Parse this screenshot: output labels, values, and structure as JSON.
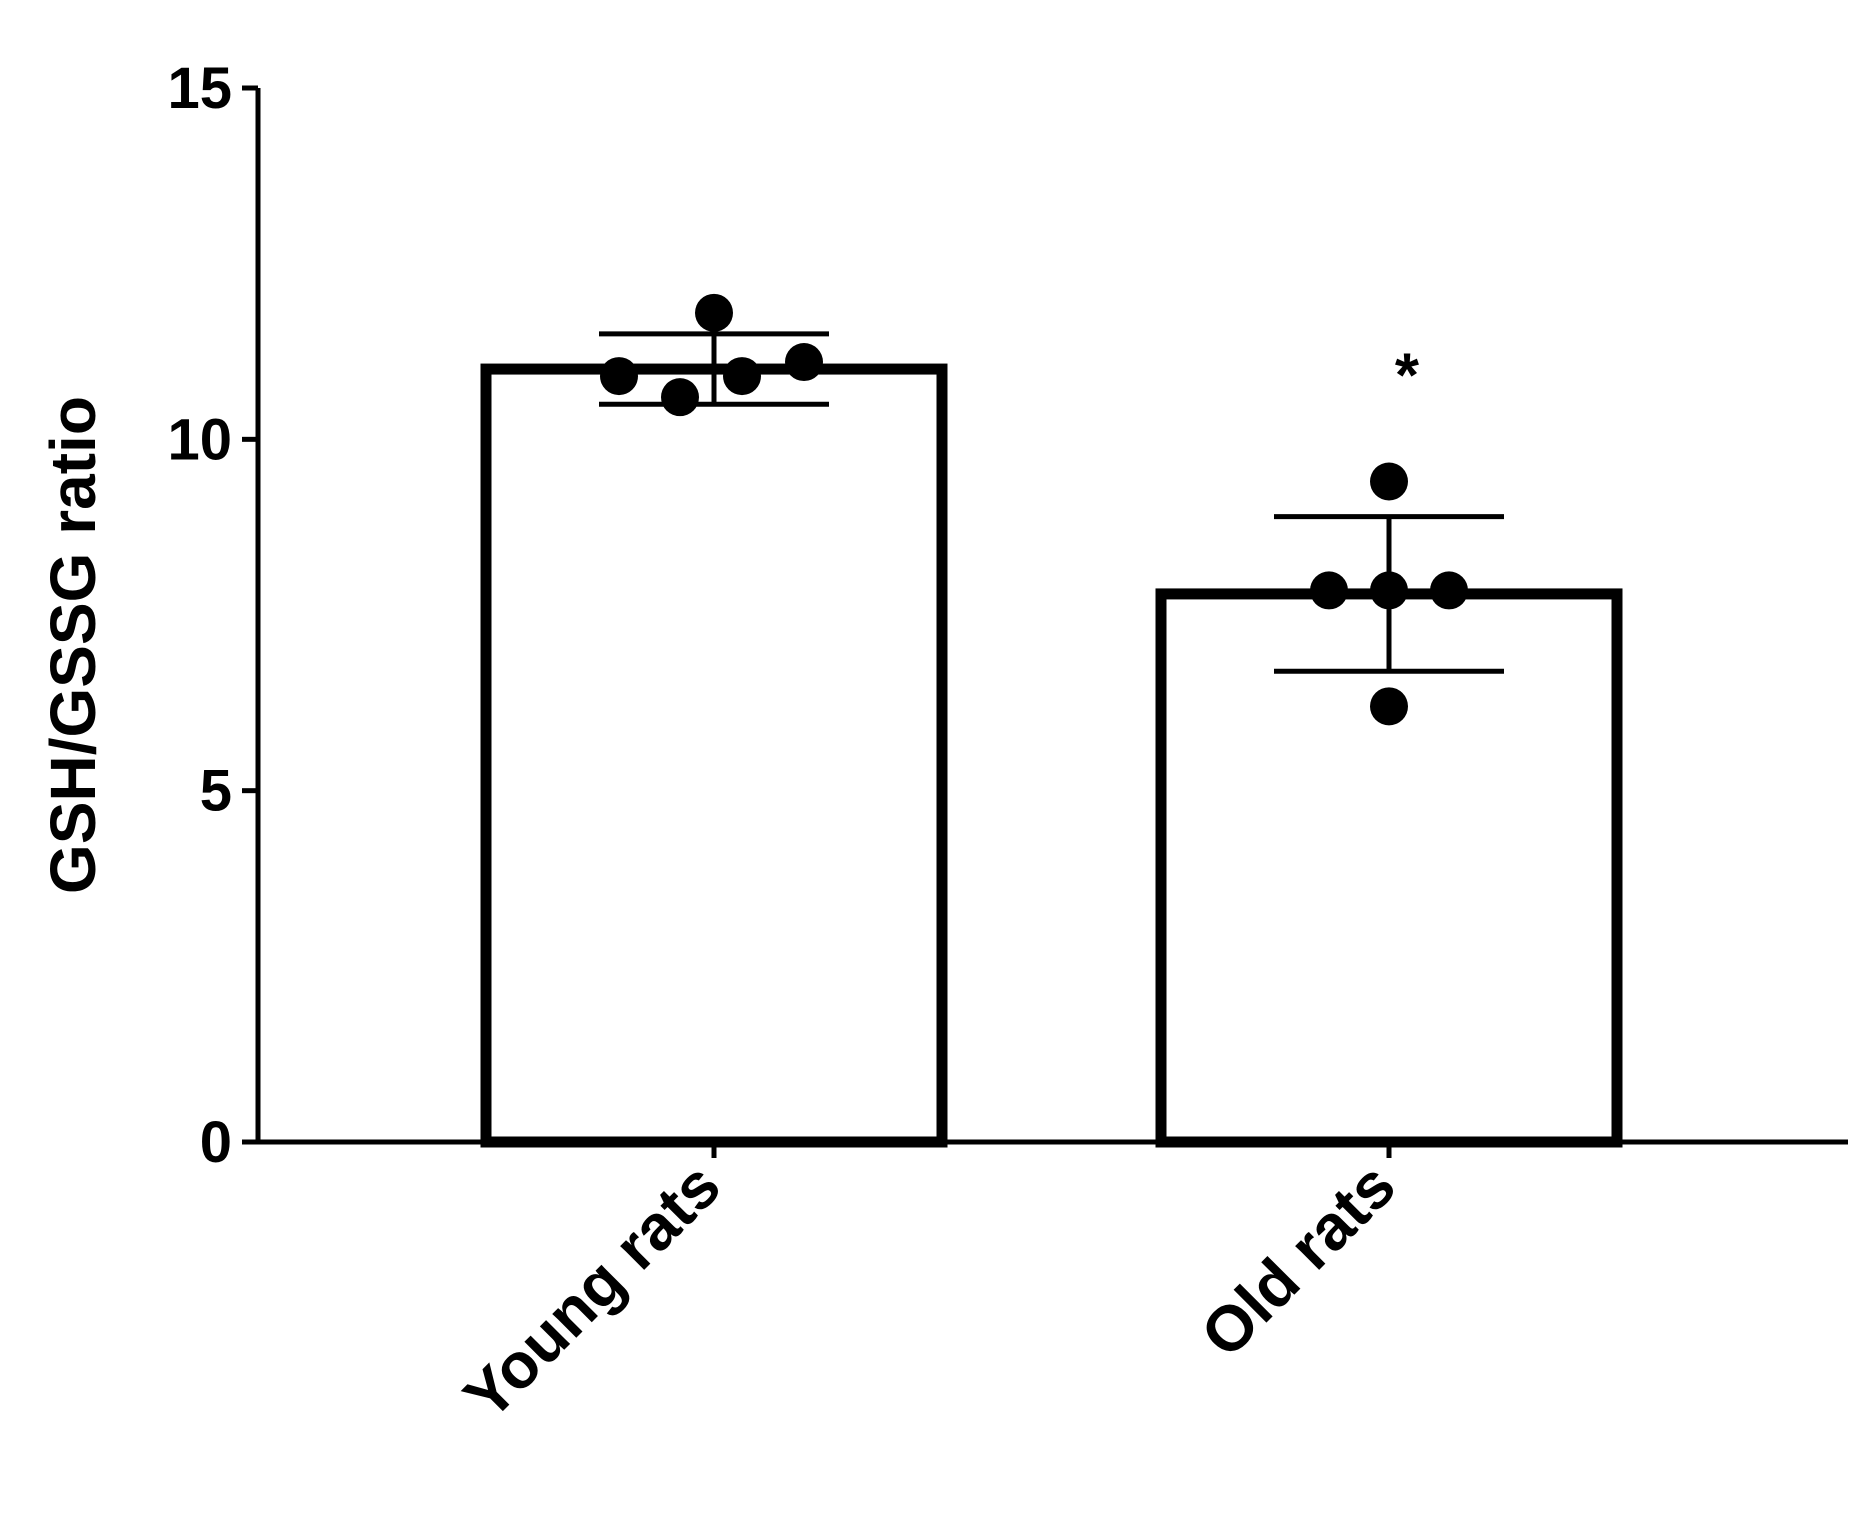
{
  "chart_data": {
    "type": "bar",
    "title": "",
    "xlabel": "",
    "ylabel": "GSH/GSSG ratio",
    "ylim": [
      0,
      15
    ],
    "yticks": [
      0,
      5,
      10,
      15
    ],
    "grid": false,
    "categories": [
      "Young rats",
      "Old rats"
    ],
    "values": [
      11.0,
      7.8
    ],
    "error": [
      0.5,
      1.1
    ],
    "points": [
      [
        10.9,
        10.6,
        11.8,
        10.9,
        11.1
      ],
      [
        7.85,
        9.4,
        7.85,
        6.2,
        7.85
      ]
    ],
    "annotations": [
      {
        "category": "Old rats",
        "text": "*"
      }
    ],
    "colors": {
      "bar_fill": "#ffffff",
      "bar_stroke": "#000000",
      "points": "#000000",
      "axes": "#000000"
    }
  }
}
